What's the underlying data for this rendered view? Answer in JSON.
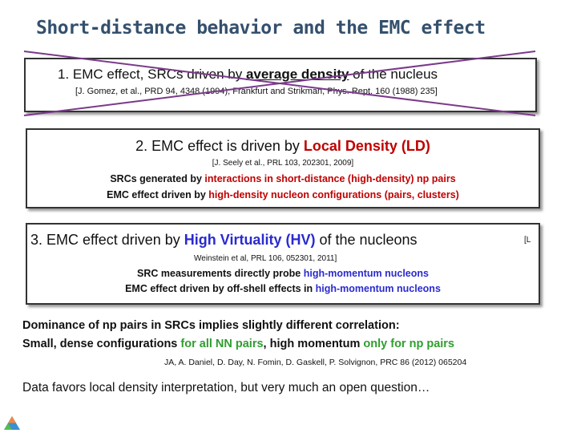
{
  "title": "Short-distance behavior and the EMC effect",
  "box1": {
    "heading": [
      "1.   EMC effect, SRCs driven by ",
      "average density",
      "  of the nucleus"
    ],
    "citation": "[J. Gomez, et al., PRD 94, 4348 (1994), Frankfurt and Strikman, Phys. Rept. 160 (1988) 235]"
  },
  "box2": {
    "heading": [
      "2. EMC effect is driven by ",
      "Local Density (LD)"
    ],
    "citation": "[J. Seely et al., PRL 103, 202301, 2009]",
    "lines": [
      [
        "SRCs generated by ",
        "interactions in short-distance (high-density) np pairs"
      ],
      [
        "EMC effect driven by ",
        "high-density nucleon configurations (pairs, clusters)"
      ]
    ]
  },
  "box3": {
    "heading": [
      "3. EMC effect driven by ",
      "High Virtuality (HV)",
      " of the nucleons"
    ],
    "citation_start": "[L",
    "citation_end": "Weinstein et al, PRL 106, 052301, 2011]",
    "lines": [
      [
        "SRC measurements directly probe ",
        "high-momentum nucleons"
      ],
      [
        "EMC effect driven by off-shell effects in ",
        "high-momentum nucleons"
      ]
    ]
  },
  "dominance": {
    "line1": "Dominance of np pairs in SRCs implies slightly different correlation:",
    "line2": [
      "Small, dense configurations ",
      "for all NN pairs",
      ", high momentum ",
      "only for np pairs"
    ],
    "citation": "JA, A. Daniel, D. Day, N. Fomin, D. Gaskell, P. Solvignon, PRC 86 (2012) 065204"
  },
  "conclusion": "Data favors local density interpretation, but very much an open question…"
}
